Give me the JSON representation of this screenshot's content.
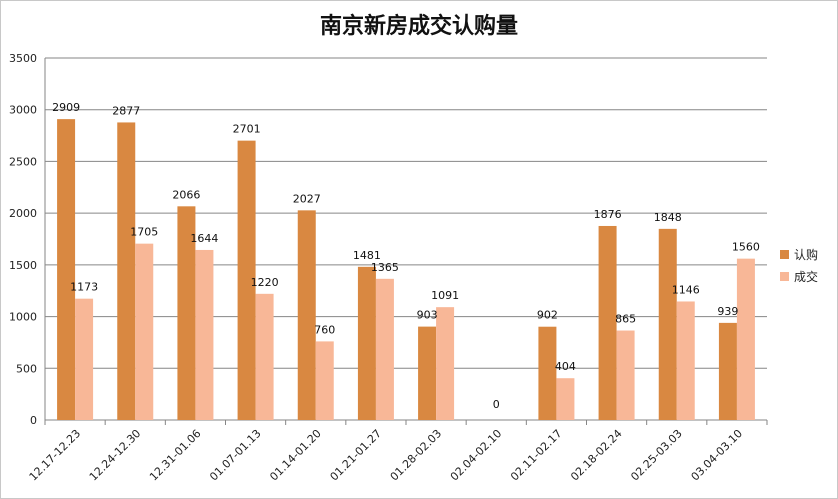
{
  "chart_data": {
    "type": "bar",
    "title": "南京新房成交认购量",
    "xlabel": "",
    "ylabel": "",
    "ylim": [
      0,
      3500
    ],
    "yticks": [
      0,
      500,
      1000,
      1500,
      2000,
      2500,
      3000,
      3500
    ],
    "grid": true,
    "legend_position": "right",
    "categories": [
      "12.17-12.23",
      "12.24-12.30",
      "12.31-01.06",
      "01.07-01.13",
      "01.14-01.20",
      "01.21-01.27",
      "01.28-02.03",
      "02.04-02.10",
      "02.11-02.17",
      "02.18-02.24",
      "02.25-03.03",
      "03.04-03.10"
    ],
    "series": [
      {
        "name": "认购",
        "color": "#D98841",
        "values": [
          2909,
          2877,
          2066,
          2701,
          2027,
          1481,
          903,
          0,
          902,
          1876,
          1848,
          939
        ]
      },
      {
        "name": "成交",
        "color": "#F8B797",
        "values": [
          1173,
          1705,
          1644,
          1220,
          760,
          1365,
          1091,
          0,
          404,
          865,
          1146,
          1560
        ]
      }
    ],
    "zero_label": "0"
  }
}
